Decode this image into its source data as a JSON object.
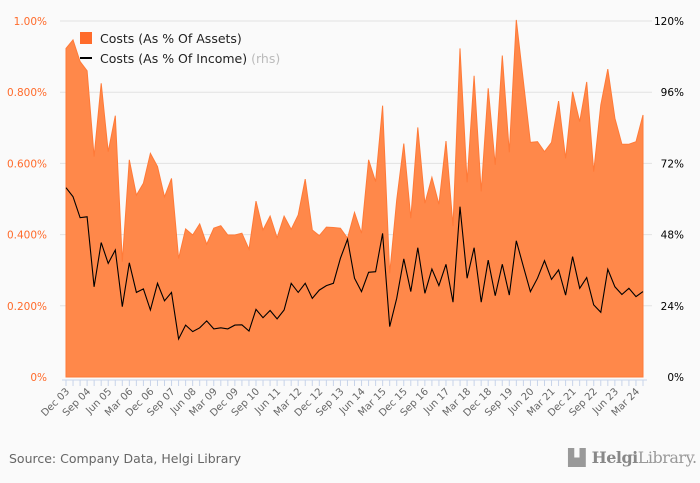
{
  "chart_data": {
    "type": "area+line",
    "categories": [
      "Dec 03",
      "Mar 04",
      "Jun 04",
      "Sep 04",
      "Dec 04",
      "Mar 05",
      "Jun 05",
      "Sep 05",
      "Dec 05",
      "Mar 06",
      "Jun 06",
      "Sep 06",
      "Dec 06",
      "Mar 07",
      "Jun 07",
      "Sep 07",
      "Dec 07",
      "Mar 08",
      "Jun 08",
      "Sep 08",
      "Dec 08",
      "Mar 09",
      "Jun 09",
      "Sep 09",
      "Dec 09",
      "Mar 10",
      "Jun 10",
      "Sep 10",
      "Dec 10",
      "Mar 11",
      "Jun 11",
      "Sep 11",
      "Dec 11",
      "Mar 12",
      "Jun 12",
      "Sep 12",
      "Dec 12",
      "Mar 13",
      "Jun 13",
      "Sep 13",
      "Dec 13",
      "Mar 14",
      "Jun 14",
      "Sep 14",
      "Dec 14",
      "Mar 15",
      "Jun 15",
      "Sep 15",
      "Dec 15",
      "Mar 16",
      "Jun 16",
      "Sep 16",
      "Dec 16",
      "Mar 17",
      "Jun 17",
      "Sep 17",
      "Dec 17",
      "Mar 18",
      "Jun 18",
      "Sep 18",
      "Dec 18",
      "Mar 19",
      "Jun 19",
      "Sep 19",
      "Dec 19",
      "Mar 20",
      "Jun 20",
      "Sep 20",
      "Dec 20",
      "Mar 21",
      "Jun 21",
      "Sep 21",
      "Dec 21",
      "Mar 22",
      "Jun 22",
      "Sep 22",
      "Dec 22",
      "Mar 23",
      "Jun 23",
      "Sep 23",
      "Dec 23",
      "Mar 24",
      "Jun 24"
    ],
    "x_tick_labels": [
      "Dec 03",
      "Sep 04",
      "Jun 05",
      "Mar 06",
      "Dec 06",
      "Sep 07",
      "Jun 08",
      "Mar 09",
      "Dec 09",
      "Sep 10",
      "Jun 11",
      "Mar 12",
      "Dec 12",
      "Sep 13",
      "Jun 14",
      "Mar 15",
      "Dec 15",
      "Sep 16",
      "Jun 17",
      "Mar 18",
      "Dec 18",
      "Sep 19",
      "Jun 20",
      "Mar 21",
      "Dec 21",
      "Sep 22",
      "Jun 23",
      "Mar 24"
    ],
    "series": [
      {
        "name": "Costs (As % Of Assets)",
        "type": "area",
        "axis": "left",
        "color": "#ff884a",
        "values": [
          0.923,
          0.947,
          0.886,
          0.86,
          0.619,
          0.825,
          0.633,
          0.734,
          0.324,
          0.61,
          0.511,
          0.544,
          0.628,
          0.591,
          0.506,
          0.558,
          0.333,
          0.416,
          0.399,
          0.43,
          0.373,
          0.418,
          0.425,
          0.399,
          0.399,
          0.404,
          0.359,
          0.494,
          0.413,
          0.452,
          0.391,
          0.452,
          0.415,
          0.455,
          0.556,
          0.413,
          0.397,
          0.421,
          0.42,
          0.418,
          0.39,
          0.462,
          0.404,
          0.61,
          0.549,
          0.762,
          0.291,
          0.497,
          0.656,
          0.446,
          0.701,
          0.488,
          0.561,
          0.485,
          0.663,
          0.424,
          0.923,
          0.547,
          0.846,
          0.521,
          0.811,
          0.596,
          0.903,
          0.631,
          1.003,
          0.83,
          0.659,
          0.661,
          0.633,
          0.659,
          0.775,
          0.614,
          0.801,
          0.717,
          0.829,
          0.577,
          0.764,
          0.865,
          0.727,
          0.654,
          0.654,
          0.661,
          0.736
        ]
      },
      {
        "name": "Costs (As % Of Income)",
        "type": "line",
        "axis": "right",
        "color": "#000000",
        "values": [
          63.8,
          60.8,
          53.7,
          54.0,
          30.4,
          45.3,
          38.3,
          42.8,
          23.7,
          38.5,
          28.5,
          29.7,
          22.6,
          31.6,
          25.7,
          28.5,
          12.8,
          17.5,
          15.3,
          16.6,
          18.9,
          16.2,
          16.6,
          16.2,
          17.5,
          17.6,
          15.5,
          22.8,
          20.0,
          22.4,
          19.6,
          22.6,
          31.6,
          28.5,
          31.6,
          26.5,
          29.3,
          30.8,
          31.6,
          40.0,
          46.4,
          33.3,
          28.8,
          35.3,
          35.5,
          48.4,
          17.0,
          26.5,
          39.8,
          28.8,
          43.6,
          28.2,
          36.4,
          30.8,
          38.0,
          25.2,
          57.4,
          33.3,
          43.6,
          25.2,
          39.4,
          27.4,
          38.0,
          27.6,
          45.9,
          37.2,
          28.8,
          33.3,
          39.2,
          32.9,
          36.1,
          27.6,
          40.6,
          29.9,
          33.5,
          24.3,
          21.8,
          36.3,
          30.4,
          27.8,
          29.9,
          27.1,
          28.8
        ]
      }
    ],
    "left_axis": {
      "ylim": [
        0,
        1.0
      ],
      "tick_values": [
        0,
        0.2,
        0.4,
        0.6,
        0.8,
        1.0
      ],
      "tick_labels": [
        "0%",
        "0.200%",
        "0.400%",
        "0.600%",
        "0.800%",
        "1.00%"
      ],
      "color": "#ff6b2b"
    },
    "right_axis": {
      "ylim": [
        0,
        120
      ],
      "tick_values": [
        0,
        24,
        48,
        72,
        96,
        120
      ],
      "tick_labels": [
        "0%",
        "24%",
        "48%",
        "72%",
        "96%",
        "120%"
      ],
      "color": "#000000"
    },
    "grid": true,
    "legend_position": "top-left"
  },
  "legend": {
    "assets_label": "Costs (As % Of Assets)",
    "income_label": "Costs (As % Of Income)",
    "rhs_label": "(rhs)"
  },
  "footer": {
    "source": "Source: Company Data, Helgi Library",
    "logo_bold": "Helgi",
    "logo_rest": "Library."
  }
}
